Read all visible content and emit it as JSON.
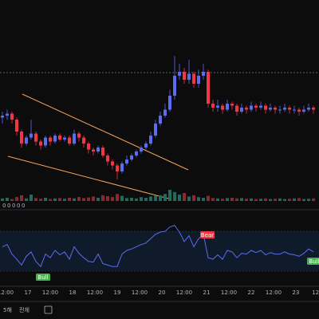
{
  "chart_data": {
    "type": "candlestick",
    "open": [
      41,
      42,
      43,
      40,
      34,
      28,
      31,
      33,
      29,
      27,
      31,
      29,
      32,
      30,
      31,
      28,
      33,
      31,
      28,
      25,
      24,
      26,
      22,
      19,
      17,
      14,
      18,
      20,
      22,
      24,
      26,
      28,
      32,
      38,
      42,
      45,
      52,
      62,
      64,
      60,
      63,
      58,
      62,
      64,
      48,
      46,
      47,
      45,
      48,
      47,
      44,
      46,
      45,
      47,
      46,
      47,
      45,
      46,
      45,
      45,
      46,
      45,
      45,
      44,
      45,
      46
    ],
    "high": [
      44,
      45,
      44,
      41,
      35,
      32,
      40,
      34,
      30,
      32,
      32,
      33,
      33,
      32,
      32,
      35,
      34,
      32,
      29,
      26,
      27,
      27,
      23,
      20,
      18,
      19,
      22,
      23,
      25,
      27,
      29,
      34,
      40,
      44,
      48,
      55,
      72,
      68,
      66,
      70,
      64,
      65,
      68,
      65,
      50,
      50,
      48,
      50,
      49,
      48,
      48,
      47,
      49,
      48,
      49,
      48,
      48,
      47,
      47,
      48,
      47,
      47,
      46,
      47,
      48,
      47
    ],
    "low": [
      38,
      40,
      38,
      32,
      26,
      27,
      30,
      27,
      25,
      26,
      27,
      28,
      29,
      29,
      27,
      27,
      29,
      26,
      23,
      22,
      23,
      21,
      17,
      15,
      10,
      13,
      17,
      19,
      21,
      23,
      25,
      27,
      31,
      37,
      41,
      44,
      50,
      60,
      58,
      58,
      56,
      56,
      60,
      46,
      44,
      44,
      43,
      44,
      45,
      42,
      43,
      43,
      44,
      44,
      45,
      43,
      44,
      43,
      43,
      44,
      43,
      43,
      42,
      43,
      44,
      43
    ],
    "close": [
      42,
      43,
      40,
      34,
      28,
      31,
      33,
      29,
      27,
      31,
      29,
      32,
      30,
      31,
      28,
      33,
      31,
      28,
      25,
      24,
      26,
      22,
      19,
      17,
      14,
      18,
      20,
      22,
      24,
      26,
      28,
      32,
      38,
      42,
      45,
      52,
      62,
      64,
      60,
      63,
      58,
      62,
      64,
      48,
      46,
      47,
      45,
      48,
      47,
      44,
      46,
      45,
      47,
      46,
      47,
      45,
      46,
      45,
      45,
      46,
      45,
      45,
      44,
      45,
      46,
      45
    ],
    "ylim": [
      0,
      100
    ],
    "up_color": "#5b6cf0",
    "down_color": "#f23645",
    "volume": [
      8,
      10,
      6,
      12,
      18,
      8,
      20,
      9,
      7,
      10,
      6,
      8,
      9,
      7,
      10,
      8,
      12,
      9,
      11,
      14,
      10,
      18,
      15,
      12,
      22,
      16,
      9,
      10,
      8,
      12,
      10,
      14,
      16,
      18,
      22,
      35,
      28,
      20,
      25,
      14,
      18,
      12,
      10,
      16,
      9,
      8,
      7,
      9,
      10,
      8,
      9,
      7,
      8,
      6,
      7,
      8,
      6,
      7,
      8,
      6,
      7,
      8,
      9,
      6,
      7,
      8
    ],
    "volume_lim": [
      0,
      100
    ],
    "volume_up_color": "#1f6b5e",
    "volume_down_color": "#8a2a30",
    "indicator_values": [
      "0",
      "0",
      "0",
      "0",
      "0"
    ],
    "rsi": [
      55,
      58,
      45,
      38,
      30,
      42,
      48,
      35,
      28,
      45,
      40,
      50,
      44,
      48,
      38,
      55,
      46,
      40,
      35,
      34,
      45,
      32,
      30,
      28,
      28,
      45,
      50,
      52,
      55,
      58,
      60,
      66,
      72,
      75,
      76,
      82,
      84,
      75,
      62,
      70,
      55,
      66,
      72,
      40,
      38,
      44,
      38,
      50,
      48,
      40,
      46,
      45,
      50,
      47,
      50,
      44,
      47,
      45,
      45,
      48,
      45,
      44,
      42,
      46,
      52,
      48
    ],
    "rsi_lim": [
      0,
      100
    ],
    "rsi_color": "#5b6cf0",
    "annotations": [
      {
        "text": "Bear",
        "color": "#f23645"
      },
      {
        "text": "Bull",
        "color": "#4caf50"
      },
      {
        "text": "Bull",
        "color": "#4caf50"
      }
    ],
    "x_labels": [
      "12:00",
      "17",
      "12:00",
      "18",
      "12:00",
      "19",
      "12:00",
      "20",
      "12:00",
      "21",
      "12:00",
      "22",
      "12:00",
      "23",
      "12:0"
    ],
    "toolbar": [
      "5해",
      "전체"
    ]
  }
}
